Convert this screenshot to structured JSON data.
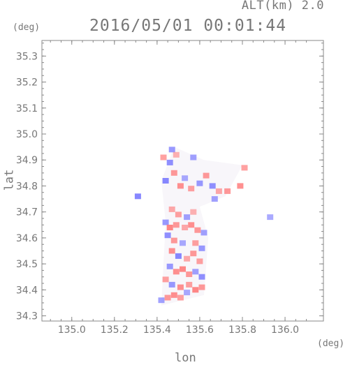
{
  "header": {
    "alt_label": "ALT(km) 2.0",
    "timestamp": "2016/05/01 00:01:44"
  },
  "chart_data": {
    "type": "heatmap",
    "title": "2016/05/01 00:01:44",
    "subtitle": "ALT(km) 2.0",
    "xlabel": "lon",
    "ylabel": "lat",
    "x_unit": "(deg)",
    "y_unit": "(deg)",
    "xlim": [
      134.86,
      136.18
    ],
    "ylim": [
      34.28,
      35.36
    ],
    "x_ticks": [
      135.0,
      135.2,
      135.4,
      135.6,
      135.8,
      136.0
    ],
    "x_tick_labels": [
      "135.0",
      "135.2",
      "135.4",
      "135.6",
      "135.8",
      "136.0"
    ],
    "y_ticks": [
      34.3,
      34.4,
      34.5,
      34.6,
      34.7,
      34.8,
      34.9,
      35.0,
      35.1,
      35.2,
      35.3
    ],
    "y_tick_labels": [
      "34.3",
      "34.4",
      "34.5",
      "34.6",
      "34.7",
      "34.8",
      "34.9",
      "35.0",
      "35.1",
      "35.2",
      "35.3"
    ],
    "grid": false,
    "colors": {
      "positive": "#ff6f6f",
      "negative": "#6f6fff",
      "neutral": "#f2eef6",
      "axis": "#888888"
    },
    "cells": [
      {
        "lon": 135.47,
        "lat": 34.94,
        "v": -0.6
      },
      {
        "lon": 135.43,
        "lat": 34.91,
        "v": 0.5
      },
      {
        "lon": 135.46,
        "lat": 34.89,
        "v": -0.7
      },
      {
        "lon": 135.49,
        "lat": 34.92,
        "v": 0.3
      },
      {
        "lon": 135.57,
        "lat": 34.91,
        "v": -0.5
      },
      {
        "lon": 135.48,
        "lat": 34.85,
        "v": 0.6
      },
      {
        "lon": 135.44,
        "lat": 34.82,
        "v": -0.8
      },
      {
        "lon": 135.51,
        "lat": 34.8,
        "v": 0.7
      },
      {
        "lon": 135.53,
        "lat": 34.83,
        "v": -0.4
      },
      {
        "lon": 135.56,
        "lat": 34.79,
        "v": 0.5
      },
      {
        "lon": 135.6,
        "lat": 34.81,
        "v": -0.6
      },
      {
        "lon": 135.63,
        "lat": 34.84,
        "v": 0.6
      },
      {
        "lon": 135.66,
        "lat": 34.8,
        "v": -0.7
      },
      {
        "lon": 135.69,
        "lat": 34.78,
        "v": 0.4
      },
      {
        "lon": 135.67,
        "lat": 34.75,
        "v": -0.5
      },
      {
        "lon": 135.73,
        "lat": 34.78,
        "v": 0.6
      },
      {
        "lon": 135.79,
        "lat": 34.8,
        "v": 0.7
      },
      {
        "lon": 135.81,
        "lat": 34.87,
        "v": 0.5
      },
      {
        "lon": 135.31,
        "lat": 34.76,
        "v": -0.8
      },
      {
        "lon": 135.47,
        "lat": 34.71,
        "v": 0.4
      },
      {
        "lon": 135.5,
        "lat": 34.69,
        "v": 0.5
      },
      {
        "lon": 135.54,
        "lat": 34.68,
        "v": -0.5
      },
      {
        "lon": 135.57,
        "lat": 34.7,
        "v": 0.3
      },
      {
        "lon": 135.44,
        "lat": 34.66,
        "v": -0.6
      },
      {
        "lon": 135.46,
        "lat": 34.64,
        "v": 0.8
      },
      {
        "lon": 135.49,
        "lat": 34.65,
        "v": 0.6
      },
      {
        "lon": 135.53,
        "lat": 34.64,
        "v": 0.4
      },
      {
        "lon": 135.56,
        "lat": 34.65,
        "v": 0.7
      },
      {
        "lon": 135.59,
        "lat": 34.63,
        "v": 0.6
      },
      {
        "lon": 135.62,
        "lat": 34.62,
        "v": -0.5
      },
      {
        "lon": 135.45,
        "lat": 34.61,
        "v": -0.7
      },
      {
        "lon": 135.48,
        "lat": 34.59,
        "v": 0.6
      },
      {
        "lon": 135.52,
        "lat": 34.58,
        "v": -0.4
      },
      {
        "lon": 135.58,
        "lat": 34.58,
        "v": 0.5
      },
      {
        "lon": 135.61,
        "lat": 34.56,
        "v": -0.6
      },
      {
        "lon": 135.47,
        "lat": 34.55,
        "v": 0.7
      },
      {
        "lon": 135.5,
        "lat": 34.53,
        "v": -0.8
      },
      {
        "lon": 135.54,
        "lat": 34.52,
        "v": 0.4
      },
      {
        "lon": 135.57,
        "lat": 34.54,
        "v": 0.6
      },
      {
        "lon": 135.6,
        "lat": 34.51,
        "v": 0.5
      },
      {
        "lon": 135.46,
        "lat": 34.49,
        "v": -0.6
      },
      {
        "lon": 135.49,
        "lat": 34.47,
        "v": 0.7
      },
      {
        "lon": 135.52,
        "lat": 34.48,
        "v": 0.8
      },
      {
        "lon": 135.55,
        "lat": 34.46,
        "v": 0.6
      },
      {
        "lon": 135.58,
        "lat": 34.47,
        "v": -0.5
      },
      {
        "lon": 135.61,
        "lat": 34.45,
        "v": -0.7
      },
      {
        "lon": 135.44,
        "lat": 34.44,
        "v": 0.5
      },
      {
        "lon": 135.47,
        "lat": 34.42,
        "v": -0.6
      },
      {
        "lon": 135.51,
        "lat": 34.41,
        "v": 0.7
      },
      {
        "lon": 135.55,
        "lat": 34.42,
        "v": 0.5
      },
      {
        "lon": 135.58,
        "lat": 34.4,
        "v": 0.8
      },
      {
        "lon": 135.61,
        "lat": 34.41,
        "v": 0.6
      },
      {
        "lon": 135.42,
        "lat": 34.36,
        "v": -0.5
      },
      {
        "lon": 135.45,
        "lat": 34.37,
        "v": 0.6
      },
      {
        "lon": 135.48,
        "lat": 34.38,
        "v": 0.7
      },
      {
        "lon": 135.51,
        "lat": 34.37,
        "v": 0.5
      },
      {
        "lon": 135.54,
        "lat": 34.39,
        "v": -0.4
      },
      {
        "lon": 135.93,
        "lat": 34.68,
        "v": -0.4
      }
    ]
  }
}
